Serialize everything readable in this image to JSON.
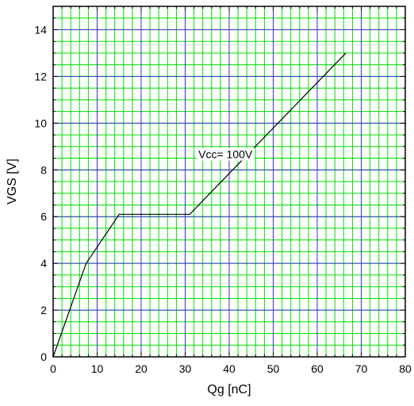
{
  "chart_data": {
    "type": "line",
    "title": "",
    "xlabel": "Qg [nC]",
    "ylabel": "VGS [V]",
    "xlim": [
      0,
      80
    ],
    "ylim": [
      0,
      15
    ],
    "x_ticks": [
      "0",
      "10",
      "20",
      "30",
      "40",
      "50",
      "60",
      "70",
      "80"
    ],
    "y_ticks": [
      "0",
      "2",
      "4",
      "6",
      "8",
      "10",
      "12",
      "14"
    ],
    "grid": true,
    "minor_grid_color": "#00e000",
    "major_grid_color": "#3333cc",
    "series": [
      {
        "color": "#000000",
        "x": [
          0,
          7.5,
          15,
          31,
          66.5
        ],
        "y": [
          0,
          4.0,
          6.1,
          6.1,
          13.0
        ]
      }
    ],
    "annotations": [
      {
        "text": "Vcc= 100V",
        "x": 33,
        "y": 8.5
      }
    ]
  }
}
